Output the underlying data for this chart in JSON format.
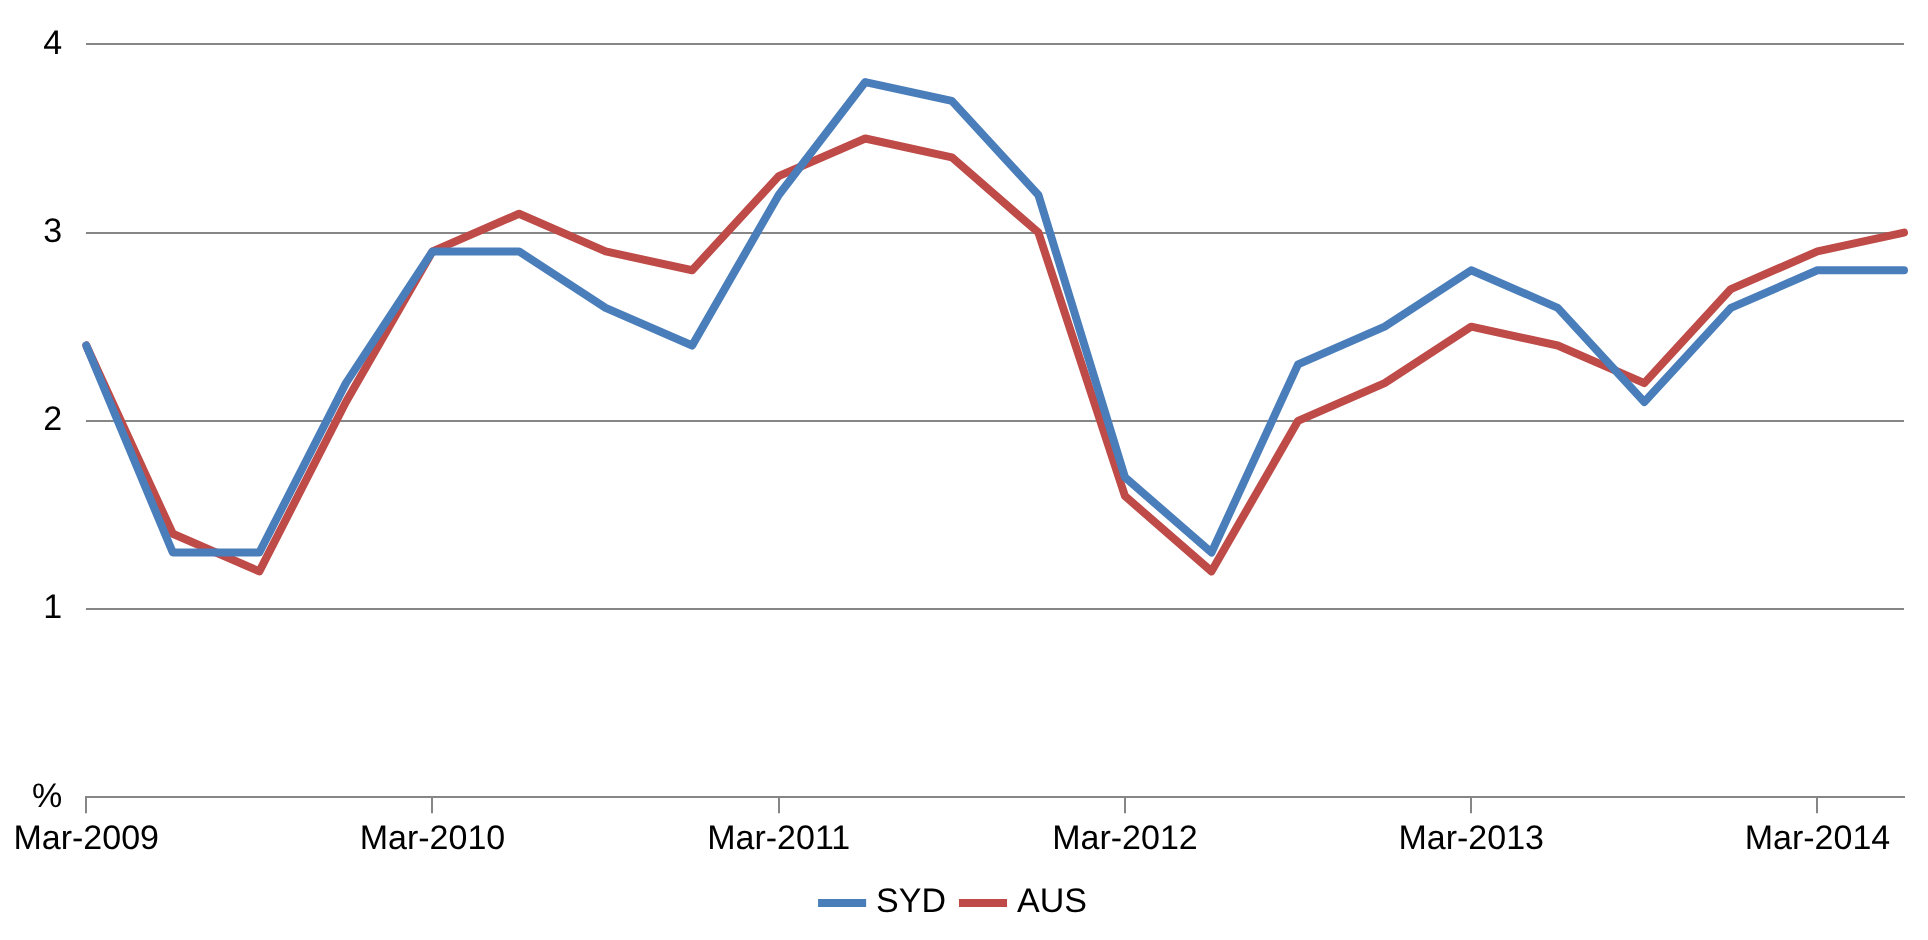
{
  "chart_data": {
    "type": "line",
    "categories": [
      "Mar-2009",
      null,
      null,
      null,
      "Mar-2010",
      null,
      null,
      null,
      "Mar-2011",
      null,
      null,
      null,
      "Mar-2012",
      null,
      null,
      null,
      "Mar-2013",
      null,
      null,
      null,
      "Mar-2014",
      null
    ],
    "series": [
      {
        "name": "SYD",
        "color": "#4a7ebb",
        "values": [
          2.4,
          1.3,
          1.3,
          2.2,
          2.9,
          2.9,
          2.6,
          2.4,
          3.2,
          3.8,
          3.7,
          3.2,
          1.7,
          1.3,
          2.3,
          2.5,
          2.8,
          2.6,
          2.1,
          2.6,
          2.8,
          2.8
        ]
      },
      {
        "name": "AUS",
        "color": "#be4b48",
        "values": [
          2.4,
          1.4,
          1.2,
          2.1,
          2.9,
          3.1,
          2.9,
          2.8,
          3.3,
          3.5,
          3.4,
          3.0,
          1.6,
          1.2,
          2.0,
          2.2,
          2.5,
          2.4,
          2.2,
          2.7,
          2.9,
          3.0
        ]
      }
    ],
    "ylim": [
      0,
      4
    ],
    "yticks": [
      {
        "value": 0,
        "label": "%"
      },
      1,
      2,
      3,
      4
    ],
    "grid": "y",
    "legend": "bottom",
    "marker": "none",
    "line_style": "solid"
  }
}
